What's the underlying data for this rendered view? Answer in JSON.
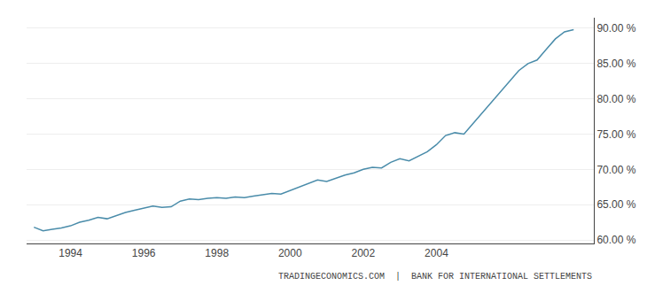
{
  "chart_data": {
    "type": "line",
    "x": [
      1993,
      1993.25,
      1993.5,
      1993.75,
      1994,
      1994.25,
      1994.5,
      1994.75,
      1995,
      1995.25,
      1995.5,
      1995.75,
      1996,
      1996.25,
      1996.5,
      1996.75,
      1997,
      1997.25,
      1997.5,
      1997.75,
      1998,
      1998.25,
      1998.5,
      1998.75,
      1999,
      1999.25,
      1999.5,
      1999.75,
      2000,
      2000.25,
      2000.5,
      2000.75,
      2001,
      2001.25,
      2001.5,
      2001.75,
      2002,
      2002.25,
      2002.5,
      2002.75,
      2003,
      2003.25,
      2003.5,
      2003.75,
      2004,
      2004.25,
      2004.5,
      2004.75,
      2005,
      2005.25,
      2005.5,
      2005.75,
      2006,
      2006.25,
      2006.5,
      2006.75,
      2007,
      2007.25,
      2007.5,
      2007.75
    ],
    "values": [
      61.8,
      61.3,
      61.5,
      61.7,
      62.0,
      62.5,
      62.8,
      63.2,
      63.0,
      63.5,
      63.9,
      64.2,
      64.5,
      64.8,
      64.6,
      64.7,
      65.5,
      65.8,
      65.7,
      65.9,
      66.0,
      65.9,
      66.1,
      66.0,
      66.2,
      66.4,
      66.6,
      66.5,
      67.0,
      67.5,
      68.0,
      68.5,
      68.3,
      68.8,
      69.2,
      69.5,
      70.0,
      70.3,
      70.2,
      71.0,
      71.5,
      71.2,
      71.8,
      72.5,
      73.5,
      74.8,
      75.2,
      75.0,
      76.5,
      78.0,
      79.5,
      81.0,
      82.5,
      84.0,
      85.0,
      85.5,
      87.0,
      88.5,
      89.5,
      89.8
    ],
    "color": "#4a8caa",
    "xlim": [
      1992.8,
      2008.3
    ],
    "xticks": [
      1994,
      1996,
      1998,
      2000,
      2002,
      2004
    ],
    "ylim": [
      59.5,
      91.5
    ],
    "yticks": [
      {
        "value": 60,
        "label": "60.00 %"
      },
      {
        "value": 65,
        "label": "65.00 %"
      },
      {
        "value": 70,
        "label": "70.00 %"
      },
      {
        "value": 75,
        "label": "75.00 %"
      },
      {
        "value": 80,
        "label": "80.00 %"
      },
      {
        "value": 85,
        "label": "85.00 %"
      },
      {
        "value": 90,
        "label": "90.00 %"
      }
    ],
    "grid": true,
    "annotations": [
      "TRADINGECONOMICS.COM  |  BANK FOR INTERNATIONAL SETTLEMENTS"
    ]
  }
}
